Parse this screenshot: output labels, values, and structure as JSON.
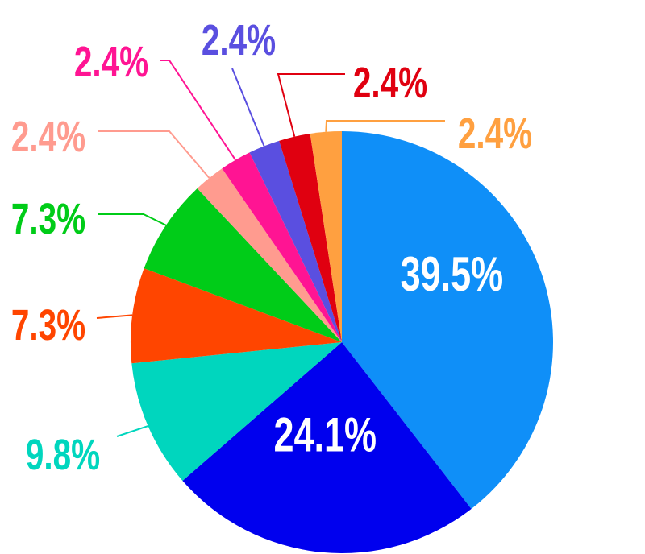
{
  "chart_data": {
    "type": "pie",
    "title": "",
    "start_angle": "12 o'clock",
    "direction": "clockwise",
    "slices": [
      {
        "value": 39.5,
        "label": "39.5%",
        "color": "#0F8FF8",
        "label_color": "#FFFFFF",
        "label_position": "inside"
      },
      {
        "value": 24.1,
        "label": "24.1%",
        "color": "#0000EE",
        "label_color": "#FFFFFF",
        "label_position": "inside"
      },
      {
        "value": 9.8,
        "label": "9.8%",
        "color": "#00D6BE",
        "label_color": "#00D6BE",
        "label_position": "outside"
      },
      {
        "value": 7.3,
        "label": "7.3%",
        "color": "#FF4500",
        "label_color": "#FF4500",
        "label_position": "outside"
      },
      {
        "value": 7.3,
        "label": "7.3%",
        "color": "#00CC18",
        "label_color": "#00CC18",
        "label_position": "outside"
      },
      {
        "value": 2.4,
        "label": "2.4%",
        "color": "#FF9B8F",
        "label_color": "#FF9B8F",
        "label_position": "outside"
      },
      {
        "value": 2.4,
        "label": "2.4%",
        "color": "#FF1493",
        "label_color": "#FF1493",
        "label_position": "outside"
      },
      {
        "value": 2.4,
        "label": "2.4%",
        "color": "#5A4FE0",
        "label_color": "#5A4FE0",
        "label_position": "outside"
      },
      {
        "value": 2.4,
        "label": "2.4%",
        "color": "#E00010",
        "label_color": "#E00010",
        "label_position": "outside"
      },
      {
        "value": 2.4,
        "label": "2.4%",
        "color": "#FFA040",
        "label_color": "#FFA040",
        "label_position": "outside"
      }
    ]
  }
}
